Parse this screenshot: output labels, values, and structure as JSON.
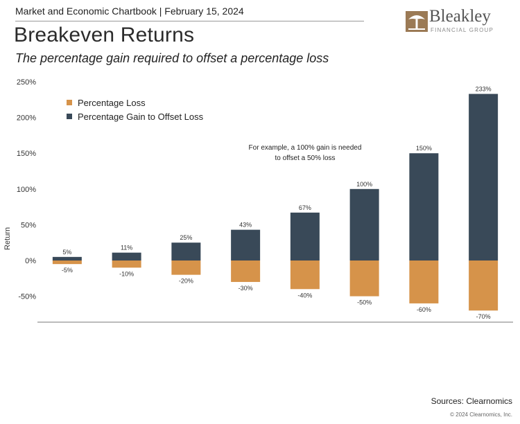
{
  "header": {
    "top_line": "Market and Economic Chartbook | February 15, 2024",
    "title": "Breakeven Returns",
    "subtitle": "The percentage gain required to offset a percentage loss"
  },
  "logo": {
    "name": "Bleakley",
    "tagline": "FINANCIAL GROUP"
  },
  "footer": {
    "sources": "Sources: Clearnomics",
    "copyright": "© 2024 Clearnomics, Inc."
  },
  "colors": {
    "loss": "#D6934A",
    "gain": "#394958",
    "axis": "#555555"
  },
  "chart_data": {
    "type": "bar",
    "ylabel": "Return",
    "xlabel": "",
    "ylim": [
      -80,
      250
    ],
    "yticks": [
      -50,
      0,
      50,
      100,
      150,
      200,
      250
    ],
    "ytick_labels": [
      "-50%",
      "0%",
      "50%",
      "100%",
      "150%",
      "200%",
      "250%"
    ],
    "grid": false,
    "legend_position": "top-left",
    "series": [
      {
        "name": "Percentage Loss",
        "values": [
          -5,
          -10,
          -20,
          -30,
          -40,
          -50,
          -60,
          -70
        ],
        "labels": [
          "-5%",
          "-10%",
          "-20%",
          "-30%",
          "-40%",
          "-50%",
          "-60%",
          "-70%"
        ]
      },
      {
        "name": "Percentage Gain to Offset Loss",
        "values": [
          5,
          11,
          25,
          43,
          67,
          100,
          150,
          233
        ],
        "labels": [
          "5%",
          "11%",
          "25%",
          "43%",
          "67%",
          "100%",
          "150%",
          "233%"
        ]
      }
    ],
    "annotation": [
      "For example, a 100% gain is needed",
      "to offset a 50% loss"
    ]
  }
}
